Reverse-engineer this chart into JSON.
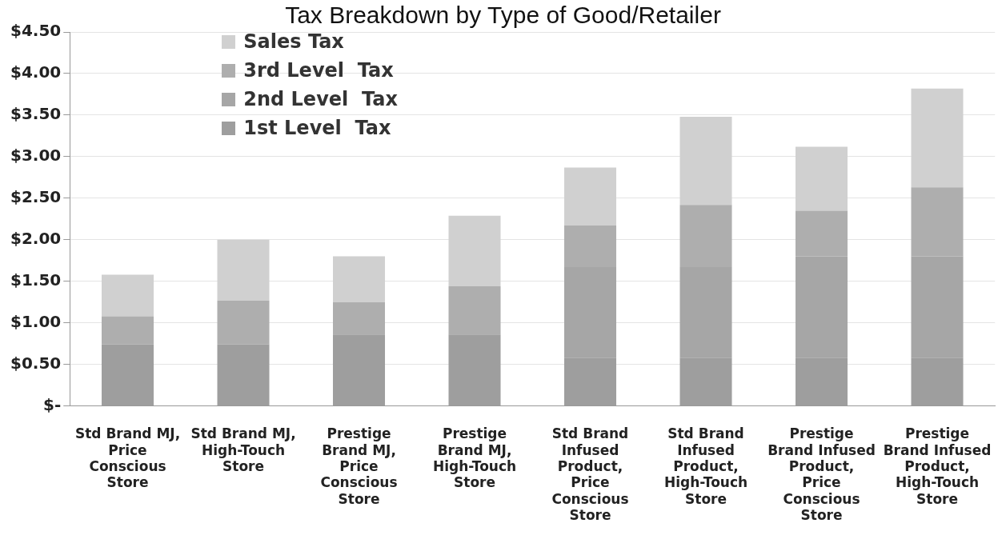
{
  "chart_data": {
    "type": "bar",
    "title": "Tax Breakdown by Type of Good/Retailer",
    "stacked": true,
    "categories": [
      "Std Brand MJ, Price Conscious Store",
      "Std Brand MJ, High-Touch Store",
      "Prestige Brand MJ, Price Conscious Store",
      "Prestige Brand MJ, High-Touch Store",
      "Std Brand Infused Product, Price Conscious Store",
      "Std Brand Infused Product, High-Touch Store",
      "Prestige Brand Infused Product, Price Conscious Store",
      "Prestige Brand Infused Product, High-Touch Store"
    ],
    "series": [
      {
        "name": "1st Level  Tax",
        "color": "#9e9e9e",
        "values": [
          0.74,
          0.74,
          0.86,
          0.86,
          0.58,
          0.58,
          0.58,
          0.58
        ]
      },
      {
        "name": "2nd Level  Tax",
        "color": "#a6a6a6",
        "values": [
          0,
          0,
          0,
          0,
          1.09,
          1.09,
          1.22,
          1.22
        ]
      },
      {
        "name": "3rd Level  Tax",
        "color": "#aeaeae",
        "values": [
          0.34,
          0.53,
          0.39,
          0.58,
          0.5,
          0.75,
          0.55,
          0.83
        ]
      },
      {
        "name": "Sales Tax",
        "color": "#d0d0d0",
        "values": [
          0.5,
          0.73,
          0.55,
          0.85,
          0.7,
          1.06,
          0.77,
          1.19
        ]
      }
    ],
    "ylim": [
      0,
      4.5
    ],
    "yticks": [
      {
        "value": 0,
        "label": "$-"
      },
      {
        "value": 0.5,
        "label": "$0.50"
      },
      {
        "value": 1,
        "label": "$1.00"
      },
      {
        "value": 1.5,
        "label": "$1.50"
      },
      {
        "value": 2,
        "label": "$2.00"
      },
      {
        "value": 2.5,
        "label": "$2.50"
      },
      {
        "value": 3,
        "label": "$3.00"
      },
      {
        "value": 3.5,
        "label": "$3.50"
      },
      {
        "value": 4,
        "label": "$4.00"
      },
      {
        "value": 4.5,
        "label": "$4.50"
      }
    ],
    "grid": "y",
    "legend": "top left"
  }
}
